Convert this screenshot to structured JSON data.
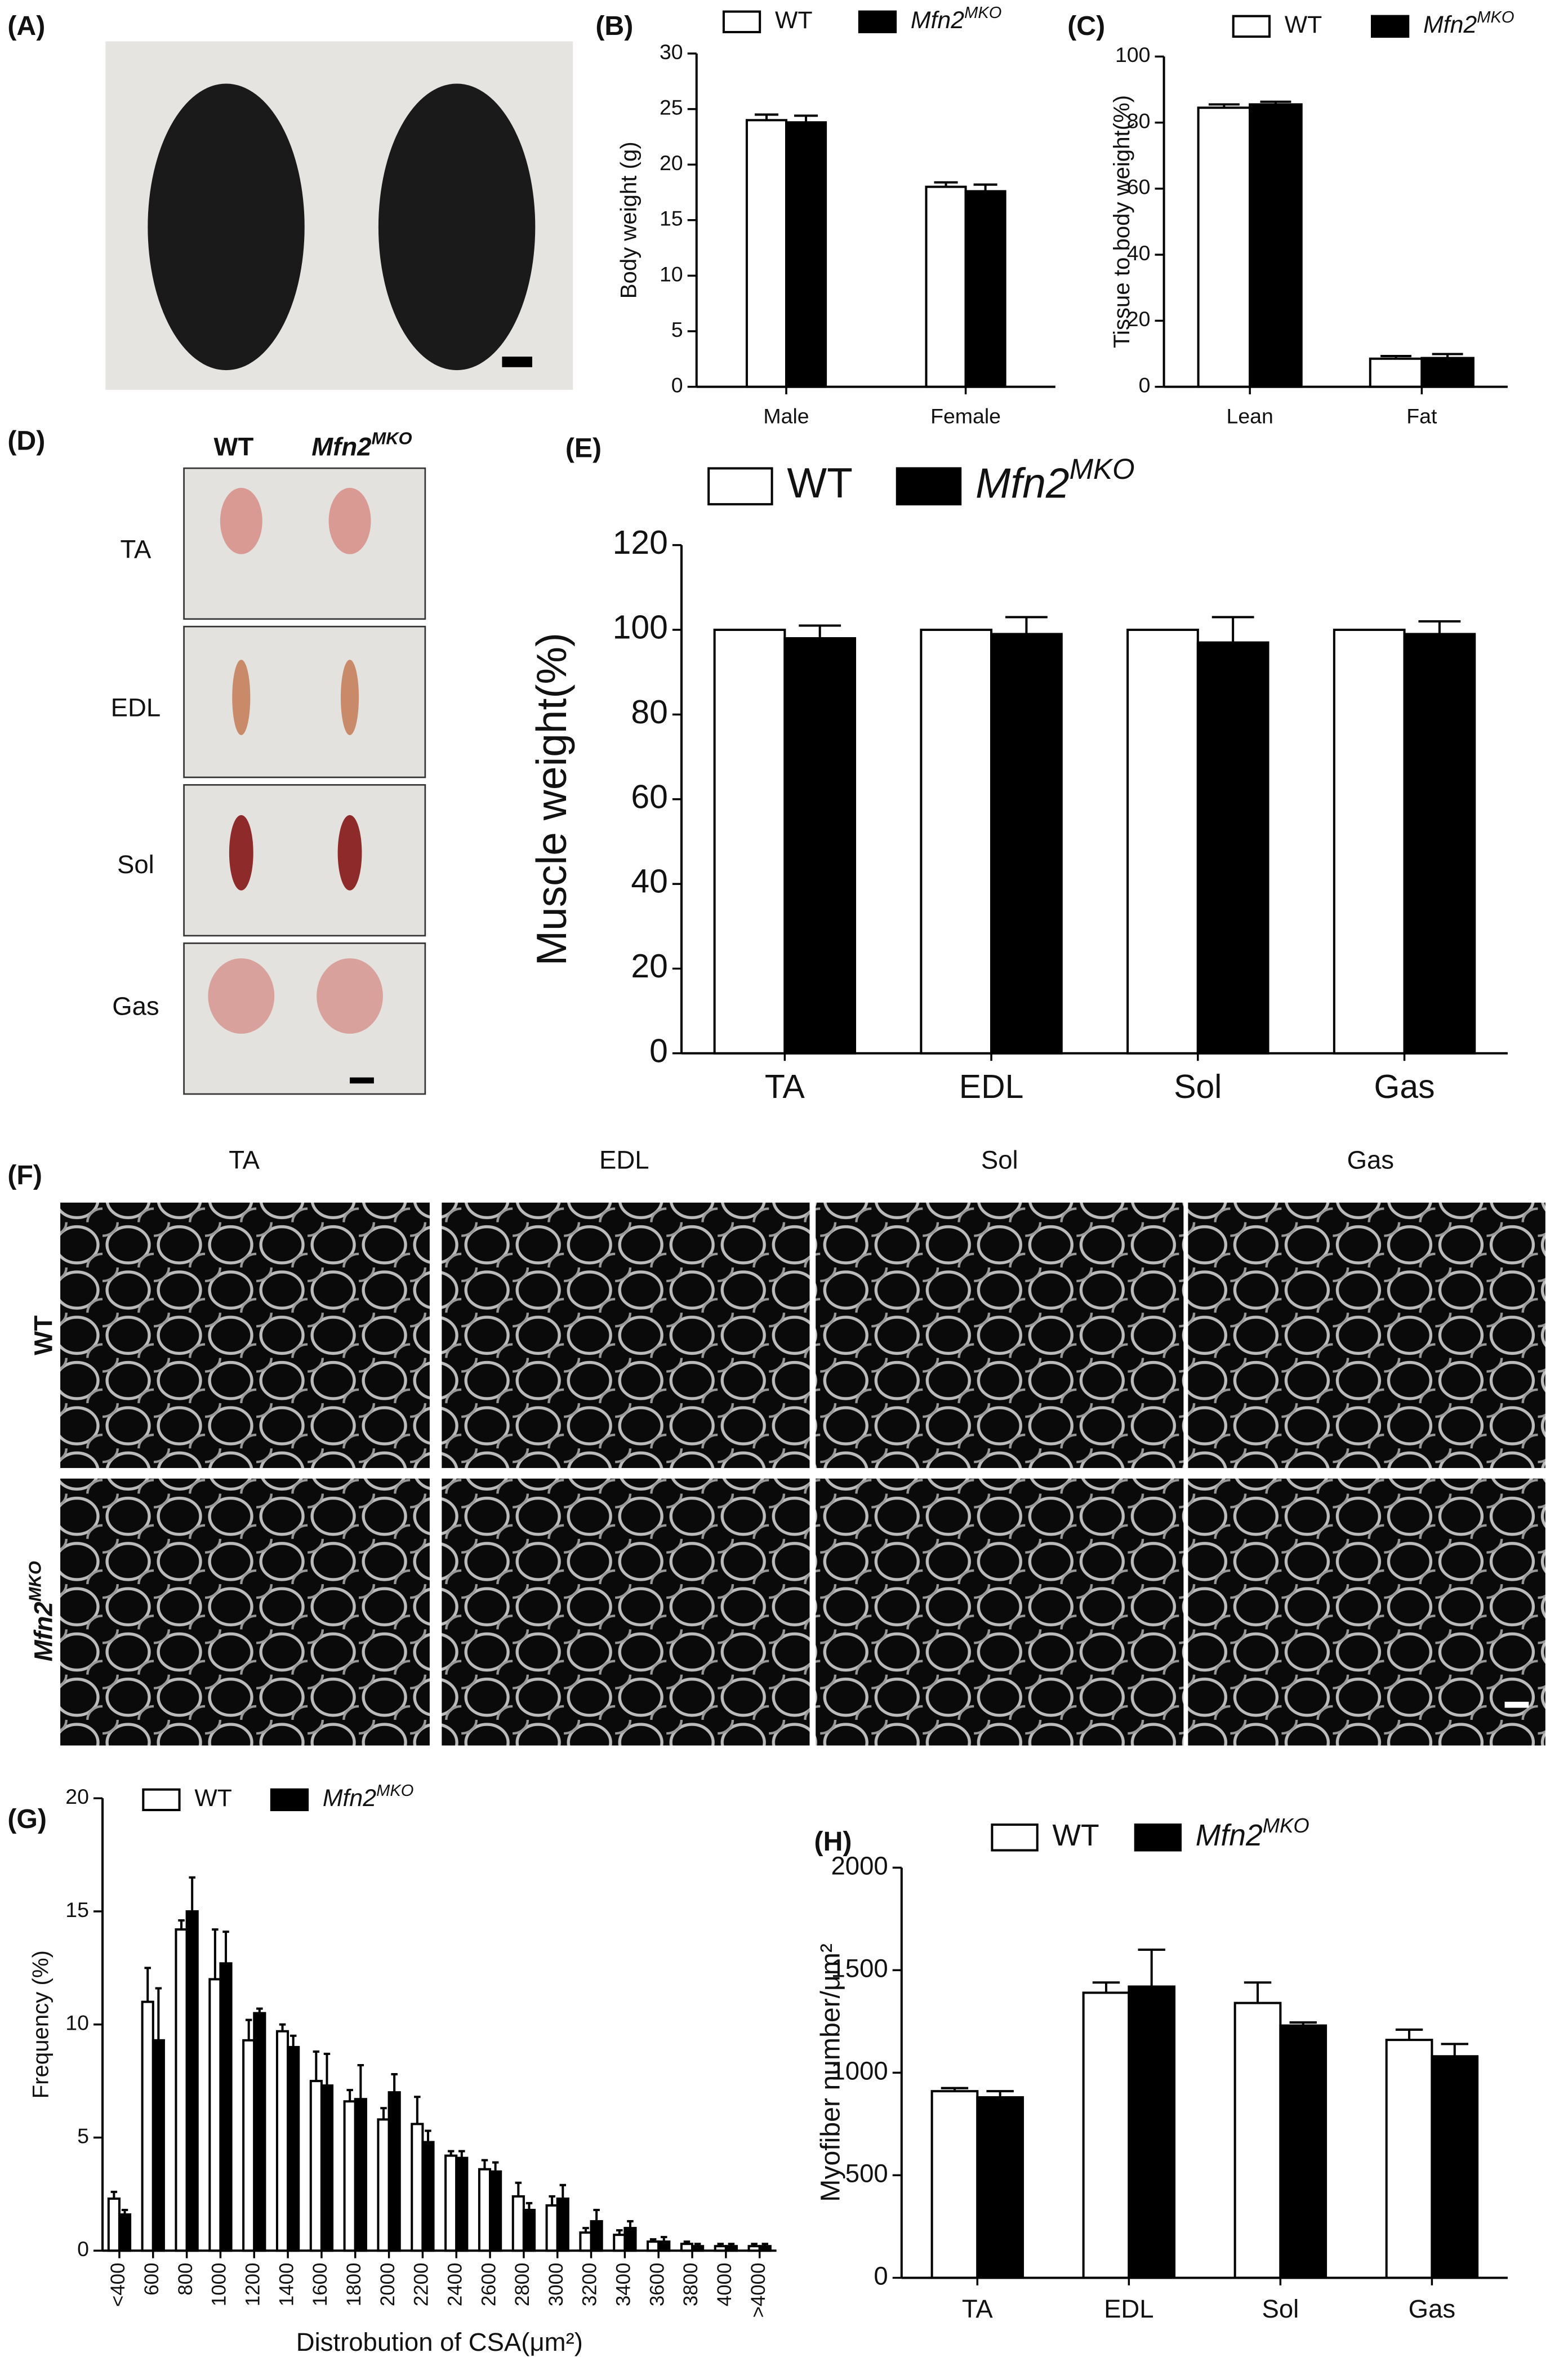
{
  "image_panels": [
    {
      "label": "(A)"
    },
    {
      "label": "(D)",
      "columns": [
        "WT",
        "Mfn2MKO"
      ],
      "rows": [
        "TA",
        "EDL",
        "Sol",
        "Gas"
      ]
    },
    {
      "label": "(F)",
      "columns": [
        "TA",
        "EDL",
        "Sol",
        "Gas"
      ],
      "rows": [
        "WT",
        "Mfn2MKO"
      ]
    }
  ],
  "chart_data": [
    {
      "type": "bar",
      "panel": "(B)",
      "ylabel": "Body weight (g)",
      "categories": [
        "Male",
        "Female"
      ],
      "series": [
        {
          "name": "WT",
          "color": "#ffffff",
          "values": [
            24,
            18
          ],
          "errors": [
            0.5,
            0.4
          ]
        },
        {
          "name": "Mfn2MKO",
          "color": "#000000",
          "values": [
            23.8,
            17.6
          ],
          "errors": [
            0.6,
            0.6
          ]
        }
      ],
      "ylim": [
        0,
        30
      ],
      "yticks": [
        0,
        5,
        10,
        15,
        20,
        25,
        30
      ]
    },
    {
      "type": "bar",
      "panel": "(C)",
      "ylabel": "Tissue to body weight(%)",
      "categories": [
        "Lean",
        "Fat"
      ],
      "series": [
        {
          "name": "WT",
          "color": "#ffffff",
          "values": [
            84.5,
            8.5
          ],
          "errors": [
            1,
            0.8
          ]
        },
        {
          "name": "Mfn2MKO",
          "color": "#000000",
          "values": [
            85.5,
            8.7
          ],
          "errors": [
            0.8,
            1.2
          ]
        }
      ],
      "ylim": [
        0,
        100
      ],
      "yticks": [
        0,
        20,
        40,
        60,
        80,
        100
      ]
    },
    {
      "type": "bar",
      "panel": "(E)",
      "ylabel": "Muscle weight(%)",
      "categories": [
        "TA",
        "EDL",
        "Sol",
        "Gas"
      ],
      "series": [
        {
          "name": "WT",
          "color": "#ffffff",
          "values": [
            100,
            100,
            100,
            100
          ]
        },
        {
          "name": "Mfn2MKO",
          "color": "#000000",
          "values": [
            98,
            99,
            97,
            99
          ],
          "errors": [
            3,
            4,
            6,
            3
          ]
        }
      ],
      "ylim": [
        0,
        120
      ],
      "yticks": [
        0,
        20,
        40,
        60,
        80,
        100,
        120
      ]
    },
    {
      "type": "bar",
      "panel": "(G)",
      "ylabel": "Frequency (%)",
      "xlabel": "Distrobution of CSA(μm²)",
      "categories": [
        "<400",
        "600",
        "800",
        "1000",
        "1200",
        "1400",
        "1600",
        "1800",
        "2000",
        "2200",
        "2400",
        "2600",
        "2800",
        "3000",
        "3200",
        "3400",
        "3600",
        "3800",
        "4000",
        ">4000"
      ],
      "series": [
        {
          "name": "WT",
          "color": "#ffffff",
          "values": [
            2.3,
            11,
            14.2,
            12,
            9.3,
            9.7,
            7.5,
            6.6,
            5.8,
            5.6,
            4.2,
            3.6,
            2.4,
            2.0,
            0.8,
            0.7,
            0.4,
            0.3,
            0.2,
            0.2
          ],
          "errors": [
            0.3,
            1.5,
            0.4,
            2.2,
            0.9,
            0.3,
            1.3,
            0.5,
            0.5,
            1.2,
            0.2,
            0.4,
            0.6,
            0.4,
            0.2,
            0.2,
            0.1,
            0.1,
            0.1,
            0.1
          ]
        },
        {
          "name": "Mfn2MKO",
          "color": "#000000",
          "values": [
            1.6,
            9.3,
            15,
            12.7,
            10.5,
            9.0,
            7.3,
            6.7,
            7.0,
            4.8,
            4.1,
            3.5,
            1.8,
            2.3,
            1.3,
            1.0,
            0.4,
            0.2,
            0.2,
            0.2
          ],
          "errors": [
            0.2,
            2.3,
            1.5,
            1.4,
            0.2,
            0.5,
            1.4,
            1.5,
            0.8,
            0.5,
            0.3,
            0.4,
            0.3,
            0.6,
            0.5,
            0.3,
            0.2,
            0.1,
            0.1,
            0.1
          ]
        }
      ],
      "ylim": [
        0,
        20
      ],
      "yticks": [
        0,
        5,
        10,
        15,
        20
      ]
    },
    {
      "type": "bar",
      "panel": "(H)",
      "ylabel": "Myofiber number/μm²",
      "categories": [
        "TA",
        "EDL",
        "Sol",
        "Gas"
      ],
      "series": [
        {
          "name": "WT",
          "color": "#ffffff",
          "values": [
            910,
            1390,
            1340,
            1160
          ],
          "errors": [
            15,
            50,
            100,
            50
          ]
        },
        {
          "name": "Mfn2MKO",
          "color": "#000000",
          "values": [
            880,
            1420,
            1230,
            1080
          ],
          "errors": [
            30,
            180,
            15,
            60
          ]
        }
      ],
      "ylim": [
        0,
        2000
      ],
      "yticks": [
        0,
        500,
        1000,
        1500,
        2000
      ]
    }
  ]
}
